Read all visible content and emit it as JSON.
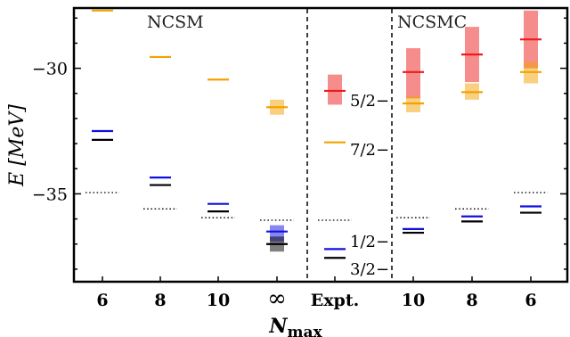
{
  "chart_data": {
    "type": "level-diagram",
    "ylim": [
      -38.5,
      -27.6
    ],
    "yticks": [
      -35,
      -30
    ],
    "ytick_labels": [
      "−35",
      "−30"
    ],
    "ylabel": "E [MeV]",
    "xlabel": "N",
    "xlabel_sub": "max",
    "categories": [
      "6",
      "8",
      "10",
      "∞",
      "Expt.",
      "10",
      "8",
      "6"
    ],
    "sections": [
      "NCSM",
      "NCSMC"
    ],
    "colors": {
      "5/2-": "#ee1c1c",
      "7/2-": "#f2a200",
      "1/2-": "#1010e0",
      "3/2-": "#000000",
      "threshold": "#000000"
    },
    "levels": [
      {
        "col": 0,
        "state": "7/2-",
        "E": -27.7
      },
      {
        "col": 0,
        "state": "1/2-",
        "E": -32.5
      },
      {
        "col": 0,
        "state": "3/2-",
        "E": -32.85
      },
      {
        "col": 1,
        "state": "7/2-",
        "E": -29.55
      },
      {
        "col": 1,
        "state": "1/2-",
        "E": -34.35
      },
      {
        "col": 1,
        "state": "3/2-",
        "E": -34.65
      },
      {
        "col": 2,
        "state": "7/2-",
        "E": -30.45
      },
      {
        "col": 2,
        "state": "1/2-",
        "E": -35.4
      },
      {
        "col": 2,
        "state": "3/2-",
        "E": -35.7
      },
      {
        "col": 3,
        "state": "7/2-",
        "E": -31.55,
        "band": [
          -31.25,
          -31.85
        ]
      },
      {
        "col": 3,
        "state": "1/2-",
        "E": -36.5,
        "band": [
          -36.25,
          -36.9
        ]
      },
      {
        "col": 3,
        "state": "3/2-",
        "E": -37.0,
        "band": [
          -36.7,
          -37.3
        ]
      },
      {
        "col": 4,
        "state": "5/2-",
        "E": -30.9,
        "band": [
          -30.25,
          -31.45
        ]
      },
      {
        "col": 4,
        "state": "7/2-",
        "E": -32.95
      },
      {
        "col": 4,
        "state": "1/2-",
        "E": -37.2
      },
      {
        "col": 4,
        "state": "3/2-",
        "E": -37.55
      },
      {
        "col": 5,
        "state": "5/2-",
        "E": -30.15,
        "band": [
          -29.2,
          -31.2
        ]
      },
      {
        "col": 5,
        "state": "7/2-",
        "E": -31.4,
        "band": [
          -31.1,
          -31.75
        ]
      },
      {
        "col": 5,
        "state": "1/2-",
        "E": -36.4
      },
      {
        "col": 5,
        "state": "3/2-",
        "E": -36.55
      },
      {
        "col": 6,
        "state": "5/2-",
        "E": -29.45,
        "band": [
          -28.35,
          -30.55
        ]
      },
      {
        "col": 6,
        "state": "7/2-",
        "E": -30.95,
        "band": [
          -30.6,
          -31.25
        ]
      },
      {
        "col": 6,
        "state": "1/2-",
        "E": -35.9
      },
      {
        "col": 6,
        "state": "3/2-",
        "E": -36.1
      },
      {
        "col": 7,
        "state": "5/2-",
        "E": -28.85,
        "band": [
          -27.7,
          -30.0
        ]
      },
      {
        "col": 7,
        "state": "7/2-",
        "E": -30.15,
        "band": [
          -29.75,
          -30.6
        ]
      },
      {
        "col": 7,
        "state": "1/2-",
        "E": -35.5
      },
      {
        "col": 7,
        "state": "3/2-",
        "E": -35.75
      }
    ],
    "thresholds": [
      {
        "col": 0,
        "E": -34.95
      },
      {
        "col": 1,
        "E": -35.6
      },
      {
        "col": 2,
        "E": -35.95
      },
      {
        "col": 3,
        "E": -36.05
      },
      {
        "col": 4,
        "E": -36.05
      },
      {
        "col": 5,
        "E": -35.95
      },
      {
        "col": 6,
        "E": -35.6
      },
      {
        "col": 7,
        "E": -34.95
      }
    ],
    "annotations": [
      {
        "label": "5/2−",
        "E": -31.3
      },
      {
        "label": "7/2−",
        "E": -33.25
      },
      {
        "label": "1/2−",
        "E": -36.9
      },
      {
        "label": "3/2−",
        "E": -38.0
      }
    ]
  }
}
